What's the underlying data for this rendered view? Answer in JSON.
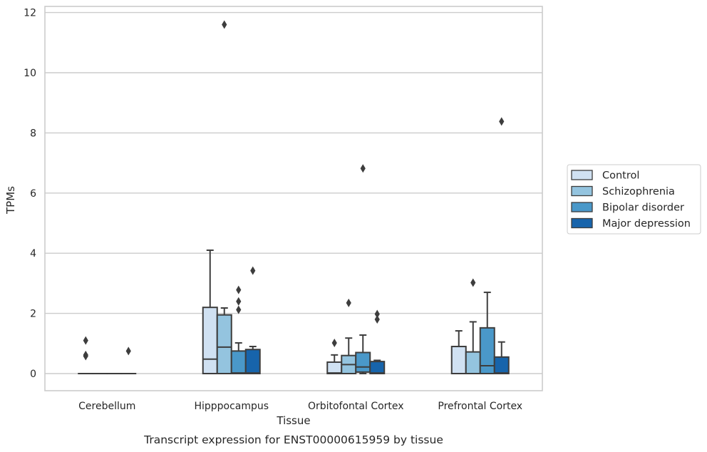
{
  "chart_data": {
    "type": "box",
    "xlabel": "Tissue",
    "ylabel": "TPMs",
    "caption": "Transcript expression for ENST00000615959 by tissue",
    "ylim": [
      -0.55,
      12.2
    ],
    "yticks": [
      0,
      2,
      4,
      6,
      8,
      10,
      12
    ],
    "grid": "horizontal",
    "legend_position": "right",
    "categories": [
      "Cerebellum",
      "Hipppocampus",
      "Orbitofontal Cortex",
      "Prefrontal Cortex"
    ],
    "series": [
      {
        "name": "Control",
        "color": "#d0e1f2",
        "boxes": [
          {
            "q1": 0,
            "median": 0,
            "q3": 0,
            "whisker_low": 0,
            "whisker_high": 0,
            "outliers": [
              1.1,
              0.62,
              0.58
            ]
          },
          {
            "q1": 0,
            "median": 0.48,
            "q3": 2.2,
            "whisker_low": 0,
            "whisker_high": 4.1,
            "outliers": []
          },
          {
            "q1": 0,
            "median": 0.02,
            "q3": 0.38,
            "whisker_low": 0,
            "whisker_high": 0.62,
            "outliers": [
              1.02
            ]
          },
          {
            "q1": 0,
            "median": 0,
            "q3": 0.9,
            "whisker_low": 0,
            "whisker_high": 1.42,
            "outliers": []
          }
        ]
      },
      {
        "name": "Schizophrenia",
        "color": "#94c4df",
        "boxes": [
          {
            "q1": 0,
            "median": 0,
            "q3": 0,
            "whisker_low": 0,
            "whisker_high": 0,
            "outliers": []
          },
          {
            "q1": 0,
            "median": 0.88,
            "q3": 1.95,
            "whisker_low": 0,
            "whisker_high": 2.18,
            "outliers": [
              11.6
            ]
          },
          {
            "q1": 0,
            "median": 0.3,
            "q3": 0.6,
            "whisker_low": 0,
            "whisker_high": 1.18,
            "outliers": [
              2.35
            ]
          },
          {
            "q1": 0,
            "median": 0,
            "q3": 0.72,
            "whisker_low": 0,
            "whisker_high": 1.72,
            "outliers": [
              3.02
            ]
          }
        ]
      },
      {
        "name": "Bipolar disorder",
        "color": "#4a98c9",
        "boxes": [
          {
            "q1": 0,
            "median": 0,
            "q3": 0,
            "whisker_low": 0,
            "whisker_high": 0,
            "outliers": []
          },
          {
            "q1": 0,
            "median": 0.02,
            "q3": 0.75,
            "whisker_low": 0,
            "whisker_high": 1.02,
            "outliers": [
              2.78,
              2.4,
              2.12
            ]
          },
          {
            "q1": 0.05,
            "median": 0.22,
            "q3": 0.7,
            "whisker_low": 0,
            "whisker_high": 1.28,
            "outliers": [
              6.82
            ]
          },
          {
            "q1": 0,
            "median": 0.26,
            "q3": 1.52,
            "whisker_low": 0,
            "whisker_high": 2.7,
            "outliers": []
          }
        ]
      },
      {
        "name": "Major depression",
        "color": "#1764ab",
        "boxes": [
          {
            "q1": 0,
            "median": 0,
            "q3": 0,
            "whisker_low": 0,
            "whisker_high": 0,
            "outliers": [
              0.75
            ]
          },
          {
            "q1": 0,
            "median": 0.02,
            "q3": 0.8,
            "whisker_low": 0,
            "whisker_high": 0.9,
            "outliers": [
              3.42
            ]
          },
          {
            "q1": 0,
            "median": 0.02,
            "q3": 0.4,
            "whisker_low": 0,
            "whisker_high": 0.44,
            "outliers": [
              1.98,
              1.8
            ]
          },
          {
            "q1": 0,
            "median": 0.02,
            "q3": 0.55,
            "whisker_low": 0,
            "whisker_high": 1.05,
            "outliers": [
              8.38
            ]
          }
        ]
      }
    ]
  }
}
